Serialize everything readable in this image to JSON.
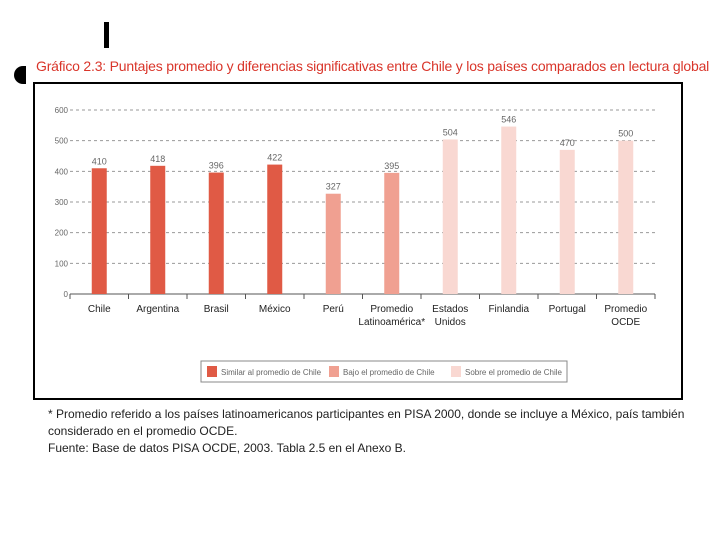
{
  "title": "Gráfico 2.3: Puntajes promedio y diferencias significativas entre Chile y los países comparados en lectura global",
  "colors": {
    "title": "#d9352a",
    "similar": "#e05a45",
    "bajo": "#f0a091",
    "sobre": "#f9d8d2"
  },
  "chart_data": {
    "type": "bar",
    "title": "",
    "xlabel": "",
    "ylabel": "",
    "ylim": [
      0,
      600
    ],
    "yticks": [
      "0",
      "100",
      "200",
      "300",
      "400",
      "500",
      "600"
    ],
    "grid": true,
    "legend_position": "bottom-center",
    "categories": [
      [
        "Chile"
      ],
      [
        "Argentina"
      ],
      [
        "Brasil"
      ],
      [
        "México"
      ],
      [
        "Perú"
      ],
      [
        "Promedio",
        "Latinoamérica*"
      ],
      [
        "Estados",
        "Unidos"
      ],
      [
        "Finlandia"
      ],
      [
        "Portugal"
      ],
      [
        "Promedio",
        "OCDE"
      ]
    ],
    "values": [
      410,
      418,
      396,
      422,
      327,
      395,
      504,
      546,
      470,
      500
    ],
    "labels": [
      "410",
      "418",
      "396",
      "422",
      "327",
      "395",
      "504",
      "546",
      "470",
      "500"
    ],
    "groups": [
      "similar",
      "similar",
      "similar",
      "similar",
      "bajo",
      "bajo",
      "sobre",
      "sobre",
      "sobre",
      "sobre"
    ],
    "legend": [
      {
        "key": "similar",
        "label": "Similar al promedio de Chile"
      },
      {
        "key": "bajo",
        "label": "Bajo el promedio de Chile"
      },
      {
        "key": "sobre",
        "label": "Sobre el promedio de Chile"
      }
    ]
  },
  "footnotes": {
    "line1": "* Promedio referido a los países latinoamericanos participantes en PISA 2000, donde se incluye a México, país también",
    "line2": "considerado en el promedio OCDE.",
    "line3": "Fuente: Base de datos PISA OCDE, 2003. Tabla 2.5 en el Anexo B."
  }
}
